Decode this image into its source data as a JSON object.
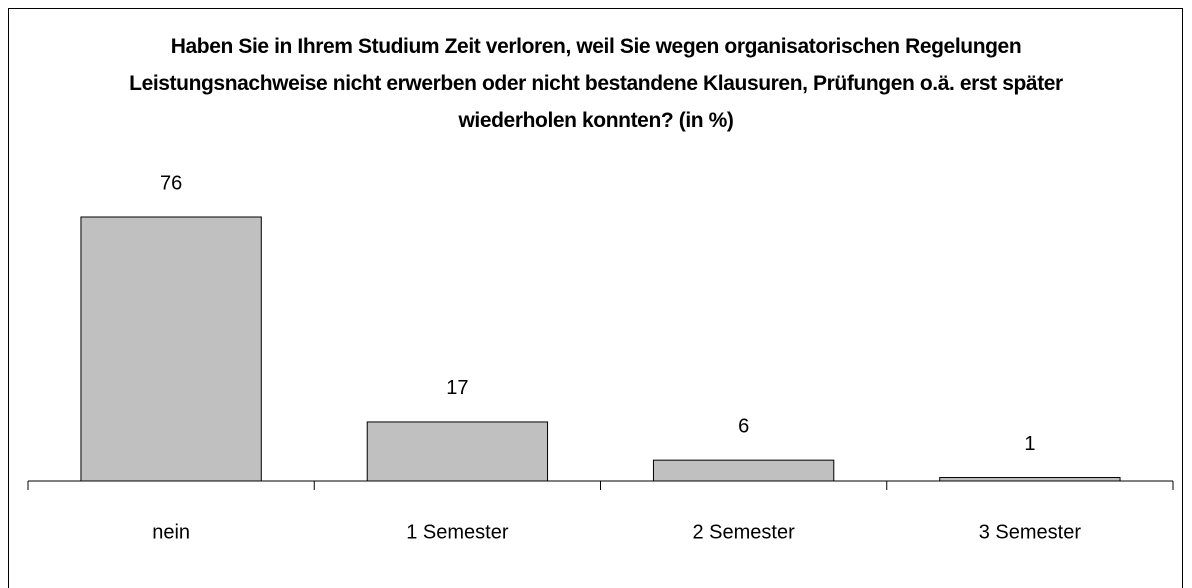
{
  "chart_data": {
    "type": "bar",
    "title": "Haben Sie in Ihrem Studium Zeit verloren, weil Sie wegen organisatorischen Regelungen Leistungsnachweise nicht erwerben oder nicht bestandene Klausuren, Prüfungen o.ä. erst später wiederholen konnten? (in %)",
    "categories": [
      "nein",
      "1 Semester",
      "2 Semester",
      "3 Semester"
    ],
    "values": [
      76,
      17,
      6,
      1
    ],
    "color": "#c0c0c0"
  }
}
